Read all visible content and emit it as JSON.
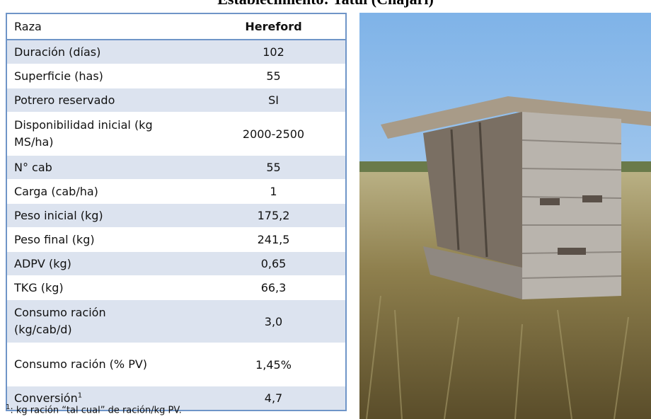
{
  "title": "Establecimiento: Tatuí (Chajarí)",
  "table": {
    "header": [
      "Raza",
      "Hereford"
    ],
    "rows": [
      {
        "label": "Duración (días)",
        "value": "102"
      },
      {
        "label": "Superficie (has)",
        "value": "55"
      },
      {
        "label": "Potrero reservado",
        "value": "SI"
      },
      {
        "label": "Disponibilidad inicial (kg MS/ha)",
        "value": "2000-2500"
      },
      {
        "label": "N° cab",
        "value": "55"
      },
      {
        "label": "Carga (cab/ha)",
        "value": "1"
      },
      {
        "label": "Peso inicial (kg)",
        "value": "175,2"
      },
      {
        "label": "Peso final (kg)",
        "value": "241,5"
      },
      {
        "label": "ADPV (kg)",
        "value": "0,65"
      },
      {
        "label": "TKG (kg)",
        "value": "66,3"
      },
      {
        "label": "Consumo ración (kg/cab/d)",
        "value": "3,0"
      },
      {
        "label": "Consumo ración (% PV)",
        "value": "1,45%"
      },
      {
        "label": "Conversión",
        "note_mark": "1",
        "value": "4,7"
      }
    ]
  },
  "footnote": {
    "mark": "1",
    "text": ": kg ración “tal cual” de ración/kg PV."
  }
}
